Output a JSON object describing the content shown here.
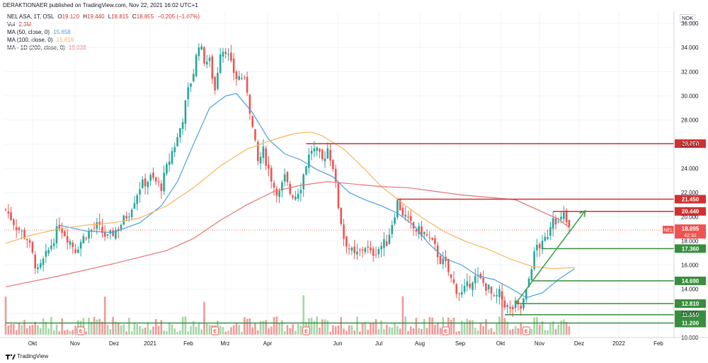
{
  "header": {
    "publisher_line": "DERAKTIONAER published on TradingView.com, Nov 22, 2021 16:02 UTC+1",
    "currency": "NOK"
  },
  "legend": {
    "symbol_line": "NEL ASA, 1T, OSL",
    "ohlc": [
      {
        "label": "O",
        "value": "19.120"
      },
      {
        "label": "H",
        "value": "19.440"
      },
      {
        "label": "L",
        "value": "18.815"
      },
      {
        "label": "C",
        "value": "18.895"
      }
    ],
    "change": "−0.205 (−1.07%)",
    "vol_label": "Vol",
    "vol_value": "2.3M",
    "indicators": [
      {
        "label": "MA (50, close, 0)",
        "value": "15.658",
        "color": "#4a9fe0"
      },
      {
        "label": "MA (100, close, 0)",
        "value": "15.819",
        "color": "#f7b557"
      },
      {
        "label": "MA - 1D (200, close, 0)",
        "value": "19.038",
        "color": "#e57373"
      }
    ]
  },
  "footer": {
    "brand": "TradingView"
  },
  "chart_data": {
    "type": "candlestick",
    "ylim": [
      10,
      37
    ],
    "y_ticks": [
      "36.000",
      "34.000",
      "32.000",
      "30.000",
      "28.000",
      "26.000",
      "24.000",
      "22.000",
      "20.000",
      "18.000",
      "16.000",
      "14.000",
      "12.000",
      "10.000"
    ],
    "y_tick_values": [
      36,
      34,
      32,
      30,
      28,
      26,
      24,
      22,
      20,
      18,
      16,
      14,
      12,
      10
    ],
    "x_ticks": [
      "Okt",
      "Nov",
      "Dez",
      "2021",
      "Feb",
      "Mrz",
      "Apr",
      "Jun",
      "Jul",
      "Aug",
      "Sep",
      "Okt",
      "Nov",
      "Dez",
      "2022",
      "Feb"
    ],
    "last_price": {
      "symbol": "NEL",
      "value": "18.895",
      "countdown": "42:32",
      "y": 18.895
    },
    "price_path": [
      [
        0,
        20.6
      ],
      [
        4,
        19.2
      ],
      [
        8,
        18.2
      ],
      [
        12,
        15.4
      ],
      [
        16,
        17.2
      ],
      [
        20,
        19.3
      ],
      [
        23,
        18.3
      ],
      [
        26,
        17.3
      ],
      [
        30,
        18.6
      ],
      [
        34,
        19.2
      ],
      [
        38,
        18.2
      ],
      [
        42,
        19.1
      ],
      [
        46,
        20.4
      ],
      [
        50,
        22.5
      ],
      [
        54,
        23.2
      ],
      [
        58,
        22.5
      ],
      [
        60,
        24.0
      ],
      [
        62,
        25.4
      ],
      [
        64,
        26.5
      ],
      [
        66,
        28.2
      ],
      [
        68,
        30.4
      ],
      [
        70,
        32.0
      ],
      [
        72,
        34.4
      ],
      [
        74,
        33.0
      ],
      [
        76,
        32.8
      ],
      [
        78,
        30.5
      ],
      [
        80,
        33.8
      ],
      [
        82,
        33.9
      ],
      [
        84,
        32.5
      ],
      [
        86,
        31.5
      ],
      [
        88,
        31.6
      ],
      [
        90,
        30.5
      ],
      [
        92,
        27.3
      ],
      [
        94,
        24.5
      ],
      [
        96,
        25.4
      ],
      [
        98,
        23.9
      ],
      [
        100,
        22.5
      ],
      [
        102,
        21.9
      ],
      [
        104,
        23.2
      ],
      [
        106,
        22.0
      ],
      [
        108,
        21.8
      ],
      [
        110,
        22.6
      ],
      [
        112,
        24.4
      ],
      [
        114,
        25.6
      ],
      [
        116,
        25.3
      ],
      [
        118,
        24.6
      ],
      [
        120,
        25.7
      ],
      [
        122,
        24.2
      ],
      [
        124,
        20.9
      ],
      [
        126,
        18.3
      ],
      [
        128,
        17.4
      ],
      [
        130,
        16.7
      ],
      [
        132,
        17.1
      ],
      [
        134,
        17.6
      ],
      [
        136,
        16.9
      ],
      [
        138,
        17.2
      ],
      [
        140,
        17.6
      ],
      [
        142,
        17.9
      ],
      [
        144,
        19.5
      ],
      [
        146,
        21.2
      ],
      [
        148,
        20.3
      ],
      [
        150,
        19.6
      ],
      [
        152,
        19.0
      ],
      [
        154,
        18.8
      ],
      [
        156,
        18.6
      ],
      [
        158,
        18.1
      ],
      [
        160,
        17.4
      ],
      [
        162,
        16.4
      ],
      [
        164,
        16.0
      ],
      [
        166,
        14.8
      ],
      [
        168,
        14.0
      ],
      [
        170,
        13.6
      ],
      [
        172,
        14.2
      ],
      [
        174,
        14.9
      ],
      [
        176,
        14.9
      ],
      [
        178,
        14.5
      ],
      [
        180,
        14.0
      ],
      [
        182,
        13.1
      ],
      [
        184,
        13.6
      ],
      [
        186,
        12.8
      ],
      [
        188,
        12.2
      ],
      [
        190,
        12.7
      ],
      [
        192,
        12.4
      ],
      [
        194,
        13.7
      ],
      [
        196,
        16.0
      ],
      [
        198,
        17.6
      ],
      [
        200,
        17.6
      ],
      [
        202,
        18.6
      ],
      [
        204,
        20.2
      ],
      [
        206,
        19.4
      ],
      [
        208,
        20.1
      ],
      [
        210,
        18.9
      ]
    ],
    "series": [
      {
        "name": "MA (50, close, 0)",
        "color": "#4a9fe0",
        "points": [
          [
            20,
            19.3
          ],
          [
            30,
            18.8
          ],
          [
            40,
            18.7
          ],
          [
            50,
            19.5
          ],
          [
            58,
            20.9
          ],
          [
            64,
            22.9
          ],
          [
            70,
            26.0
          ],
          [
            76,
            29.0
          ],
          [
            82,
            30.0
          ],
          [
            86,
            30.2
          ],
          [
            92,
            28.6
          ],
          [
            98,
            26.4
          ],
          [
            104,
            25.2
          ],
          [
            110,
            24.7
          ],
          [
            116,
            23.9
          ],
          [
            122,
            23.3
          ],
          [
            128,
            22.0
          ],
          [
            134,
            21.4
          ],
          [
            140,
            20.9
          ],
          [
            146,
            20.3
          ],
          [
            152,
            19.3
          ],
          [
            158,
            17.7
          ],
          [
            164,
            16.5
          ],
          [
            170,
            16.0
          ],
          [
            176,
            15.1
          ],
          [
            182,
            14.8
          ],
          [
            188,
            14.1
          ],
          [
            194,
            13.3
          ],
          [
            200,
            13.7
          ],
          [
            206,
            14.8
          ],
          [
            212,
            15.7
          ]
        ]
      },
      {
        "name": "MA (100, close, 0)",
        "color": "#f7b557",
        "points": [
          [
            0,
            17.8
          ],
          [
            10,
            18.5
          ],
          [
            20,
            19.0
          ],
          [
            30,
            19.3
          ],
          [
            40,
            19.5
          ],
          [
            50,
            19.9
          ],
          [
            60,
            20.9
          ],
          [
            70,
            22.4
          ],
          [
            80,
            24.2
          ],
          [
            90,
            25.6
          ],
          [
            100,
            26.4
          ],
          [
            108,
            26.9
          ],
          [
            114,
            27.0
          ],
          [
            118,
            26.7
          ],
          [
            126,
            25.6
          ],
          [
            134,
            23.9
          ],
          [
            140,
            22.5
          ],
          [
            148,
            21.1
          ],
          [
            156,
            19.8
          ],
          [
            164,
            18.7
          ],
          [
            172,
            17.9
          ],
          [
            180,
            17.3
          ],
          [
            188,
            16.5
          ],
          [
            196,
            15.9
          ],
          [
            204,
            15.7
          ],
          [
            212,
            15.8
          ]
        ]
      },
      {
        "name": "MA - 1D (200, close, 0)",
        "color": "#e57373",
        "points": [
          [
            0,
            14.2
          ],
          [
            20,
            15.1
          ],
          [
            40,
            16.1
          ],
          [
            60,
            17.2
          ],
          [
            70,
            18.2
          ],
          [
            80,
            19.7
          ],
          [
            90,
            21.0
          ],
          [
            100,
            22.1
          ],
          [
            110,
            22.6
          ],
          [
            120,
            22.9
          ],
          [
            130,
            22.7
          ],
          [
            140,
            22.5
          ],
          [
            150,
            22.4
          ],
          [
            160,
            22.1
          ],
          [
            170,
            21.8
          ],
          [
            180,
            21.6
          ],
          [
            190,
            21.4
          ],
          [
            200,
            20.4
          ],
          [
            206,
            19.8
          ],
          [
            210,
            19.1
          ]
        ]
      }
    ],
    "levels": [
      {
        "label": "26.050",
        "value": 26.05,
        "color": "#d32f2f",
        "from": 112
      },
      {
        "label": "21.450",
        "value": 21.45,
        "color": "#d32f2f",
        "from": 146
      },
      {
        "label": "20.440",
        "value": 20.44,
        "color": "#d32f2f",
        "from": 204
      },
      {
        "label": "17.360",
        "value": 17.36,
        "color": "#388e3c",
        "from": 200
      },
      {
        "label": "14.690",
        "value": 14.69,
        "color": "#388e3c",
        "from": 196
      },
      {
        "label": "12.810",
        "value": 12.81,
        "color": "#388e3c",
        "from": 190
      },
      {
        "label": "11.890",
        "value": 11.89,
        "color": "#388e3c",
        "from": 186
      },
      {
        "label": "11.200",
        "value": 11.2,
        "color": "#388e3c",
        "from": 0
      }
    ],
    "trend_arrow": {
      "from": [
        190,
        12.8
      ],
      "to": [
        216,
        20.5
      ],
      "color": "#43a047"
    },
    "earnings_markers": [
      28,
      78,
      112,
      164,
      194
    ],
    "earnings_label": "E"
  }
}
